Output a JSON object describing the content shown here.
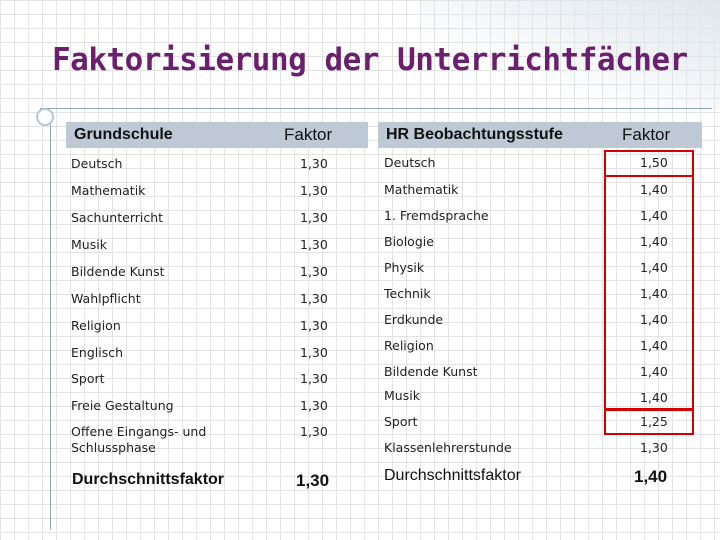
{
  "title": "Faktorisierung der Unterrichtfächer",
  "left_table": {
    "header": {
      "subject": "Grundschule",
      "factor": "Faktor"
    },
    "rows": [
      {
        "subject": "Deutsch",
        "factor": "1,30"
      },
      {
        "subject": "Mathematik",
        "factor": "1,30"
      },
      {
        "subject": "Sachunterricht",
        "factor": "1,30"
      },
      {
        "subject": "Musik",
        "factor": "1,30"
      },
      {
        "subject": "Bildende Kunst",
        "factor": "1,30"
      },
      {
        "subject": "Wahlpflicht",
        "factor": "1,30"
      },
      {
        "subject": "Religion",
        "factor": "1,30"
      },
      {
        "subject": "Englisch",
        "factor": "1,30"
      },
      {
        "subject": "Sport",
        "factor": "1,30"
      },
      {
        "subject": "Freie Gestaltung",
        "factor": "1,30"
      },
      {
        "subject": "Offene Eingangs- und Schlussphase",
        "factor": "1,30"
      }
    ],
    "footer": {
      "label": "Durchschnittsfaktor",
      "factor": "1,30"
    }
  },
  "right_table": {
    "header": {
      "subject": "HR Beobachtungsstufe",
      "factor": "Faktor"
    },
    "rows": [
      {
        "subject": "Deutsch",
        "factor": "1,50"
      },
      {
        "subject": "Mathematik",
        "factor": "1,40"
      },
      {
        "subject": "1. Fremdsprache",
        "factor": "1,40"
      },
      {
        "subject": "Biologie",
        "factor": "1,40"
      },
      {
        "subject": "Physik",
        "factor": "1,40"
      },
      {
        "subject": "Technik",
        "factor": "1,40"
      },
      {
        "subject": "Erdkunde",
        "factor": "1,40"
      },
      {
        "subject": "Religion",
        "factor": "1,40"
      },
      {
        "subject": "Bildende Kunst",
        "factor": "1,40"
      },
      {
        "subject": "Musik",
        "factor": "1,40"
      },
      {
        "subject": "Sport",
        "factor": "1,25"
      },
      {
        "subject": "Klassenlehrerstunde",
        "factor": "1,30"
      }
    ],
    "footer": {
      "label": "Durchschnittsfaktor",
      "factor": "1,40"
    }
  },
  "colors": {
    "title": "#6b1f6e",
    "header_bg": "#bfc9d6",
    "highlight": "#d40000"
  }
}
